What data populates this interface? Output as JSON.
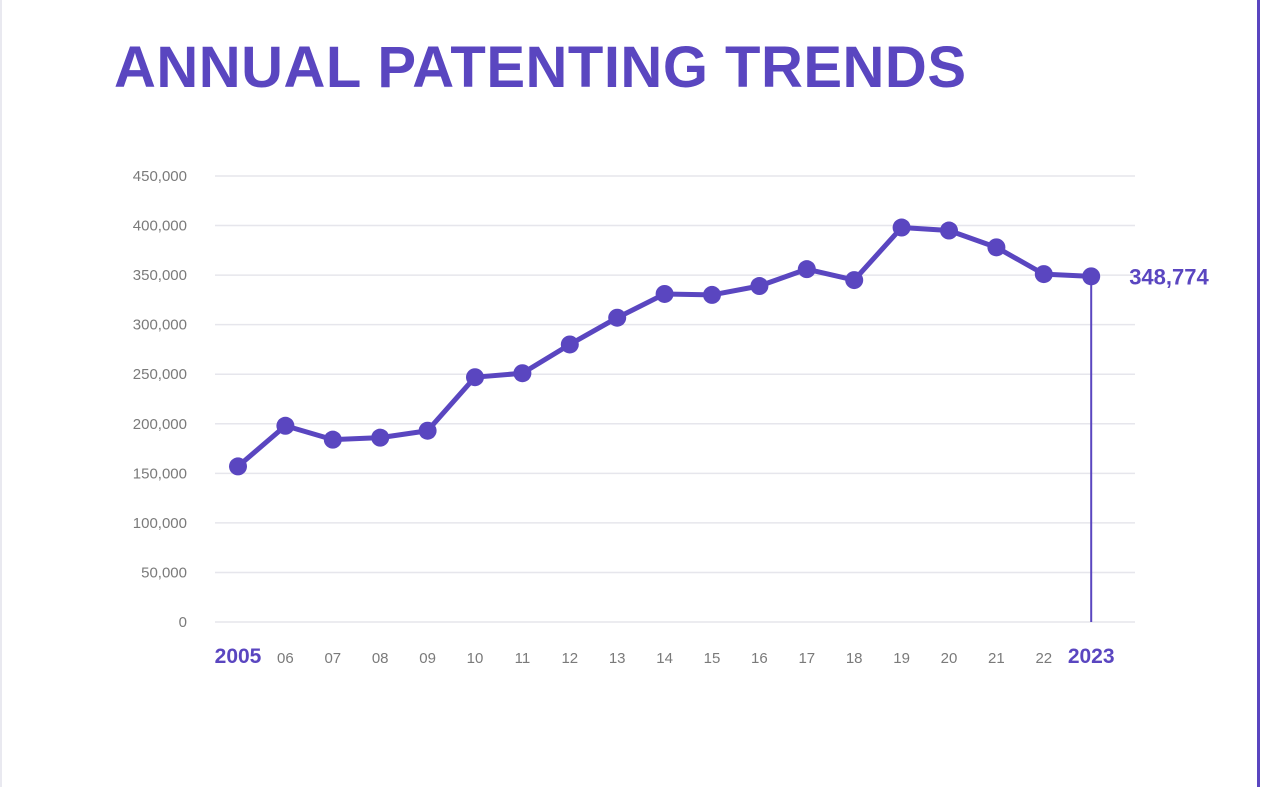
{
  "title": "ANNUAL PATENTING TRENDS",
  "colors": {
    "accent": "#5a46c0",
    "grid": "#e6e6ec",
    "tick_text": "#7a7a7a"
  },
  "chart_data": {
    "type": "line",
    "title": "ANNUAL PATENTING TRENDS",
    "xlabel": "",
    "ylabel": "",
    "categories": [
      "2005",
      "06",
      "07",
      "08",
      "09",
      "10",
      "11",
      "12",
      "13",
      "14",
      "15",
      "16",
      "17",
      "18",
      "19",
      "20",
      "21",
      "22",
      "2023"
    ],
    "highlighted_categories": [
      "2005",
      "2023"
    ],
    "series": [
      {
        "values": [
          157000,
          198000,
          184000,
          186000,
          193000,
          247000,
          251000,
          280000,
          307000,
          331000,
          330000,
          339000,
          356000,
          345000,
          398000,
          395000,
          378000,
          351000,
          348774
        ]
      }
    ],
    "yticks": [
      "0",
      "50,000",
      "100,000",
      "150,000",
      "200,000",
      "250,000",
      "300,000",
      "350,000",
      "400,000",
      "450,000"
    ],
    "ylim": [
      0,
      450000
    ],
    "grid": true,
    "annotation": {
      "category": "2023",
      "label": "348,774"
    }
  }
}
